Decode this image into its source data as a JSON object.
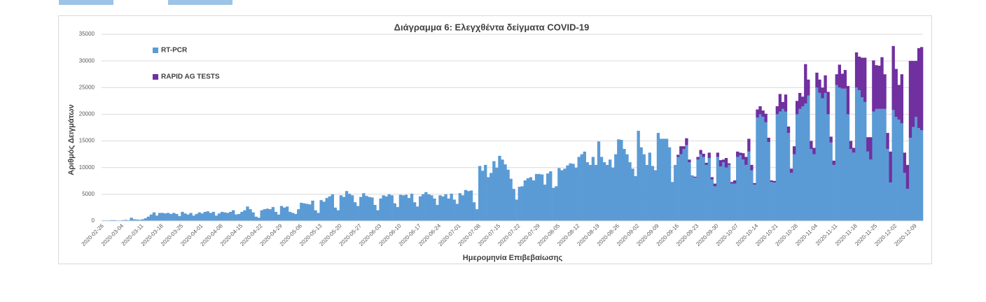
{
  "chart_data": {
    "type": "bar",
    "stacked": true,
    "title": "Διάγραμμα 6: Ελεγχθέντα δείγματα COVID-19",
    "x_label": "Ημερομηνία Επιβεβαίωσης",
    "y_label": "Αριθμός Δειγμάτων",
    "ylim": [
      0,
      35000
    ],
    "yticks": [
      0,
      5000,
      10000,
      15000,
      20000,
      25000,
      30000,
      35000
    ],
    "grid": true,
    "legend": "upper left",
    "categories": [
      "2020-02-26",
      null,
      null,
      null,
      null,
      null,
      null,
      "2020-03-04",
      null,
      null,
      null,
      null,
      null,
      null,
      "2020-03-11",
      null,
      null,
      null,
      null,
      null,
      null,
      "2020-03-18",
      null,
      null,
      null,
      null,
      null,
      null,
      "2020-03-25",
      null,
      null,
      null,
      null,
      null,
      null,
      "2020-04-01",
      null,
      null,
      null,
      null,
      null,
      null,
      "2020-04-08",
      null,
      null,
      null,
      null,
      null,
      null,
      "2020-04-15",
      null,
      null,
      null,
      null,
      null,
      null,
      "2020-04-22",
      null,
      null,
      null,
      null,
      null,
      null,
      "2020-04-29",
      null,
      null,
      null,
      null,
      null,
      null,
      "2020-05-06",
      null,
      null,
      null,
      null,
      null,
      null,
      "2020-05-13",
      null,
      null,
      null,
      null,
      null,
      null,
      "2020-05-20",
      null,
      null,
      null,
      null,
      null,
      null,
      "2020-05-27",
      null,
      null,
      null,
      null,
      null,
      null,
      "2020-06-03",
      null,
      null,
      null,
      null,
      null,
      null,
      "2020-06-10",
      null,
      null,
      null,
      null,
      null,
      null,
      "2020-06-17",
      null,
      null,
      null,
      null,
      null,
      null,
      "2020-06-24",
      null,
      null,
      null,
      null,
      null,
      null,
      "2020-07-01",
      null,
      null,
      null,
      null,
      null,
      null,
      "2020-07-08",
      null,
      null,
      null,
      null,
      null,
      null,
      "2020-07-15",
      null,
      null,
      null,
      null,
      null,
      null,
      "2020-07-22",
      null,
      null,
      null,
      null,
      null,
      null,
      "2020-07-29",
      null,
      null,
      null,
      null,
      null,
      null,
      "2020-08-05",
      null,
      null,
      null,
      null,
      null,
      null,
      "2020-08-12",
      null,
      null,
      null,
      null,
      null,
      null,
      "2020-08-19",
      null,
      null,
      null,
      null,
      null,
      null,
      "2020-08-26",
      null,
      null,
      null,
      null,
      null,
      null,
      "2020-09-02",
      null,
      null,
      null,
      null,
      null,
      null,
      "2020-09-09",
      null,
      null,
      null,
      null,
      null,
      null,
      "2020-09-16",
      null,
      null,
      null,
      null,
      null,
      null,
      "2020-09-23",
      null,
      null,
      null,
      null,
      null,
      null,
      "2020-09-30",
      null,
      null,
      null,
      null,
      null,
      null,
      "2020-10-07",
      null,
      null,
      null,
      null,
      null,
      null,
      "2020-10-14",
      null,
      null,
      null,
      null,
      null,
      null,
      "2020-10-21",
      null,
      null,
      null,
      null,
      null,
      null,
      "2020-10-28",
      null,
      null,
      null,
      null,
      null,
      null,
      "2020-11-04",
      null,
      null,
      null,
      null,
      null,
      null,
      "2020-11-11",
      null,
      null,
      null,
      null,
      null,
      null,
      "2020-11-18",
      null,
      null,
      null,
      null,
      null,
      null,
      "2020-11-25",
      null,
      null,
      null,
      null,
      null,
      null,
      "2020-12-02",
      null,
      null,
      null,
      null,
      null,
      null,
      "2020-12-09",
      null,
      null
    ],
    "series": [
      {
        "name": "RT-PCR",
        "color": "#5b9bd5",
        "values": [
          100,
          100,
          100,
          150,
          150,
          100,
          100,
          150,
          200,
          150,
          600,
          300,
          250,
          200,
          300,
          500,
          800,
          1200,
          1600,
          1000,
          1500,
          1500,
          1400,
          1500,
          1300,
          1500,
          1300,
          900,
          1700,
          1400,
          1200,
          1500,
          1000,
          1300,
          1600,
          1400,
          1700,
          1800,
          1500,
          1700,
          1000,
          1400,
          1700,
          1600,
          1500,
          1700,
          2000,
          1200,
          1300,
          1700,
          2000,
          2700,
          2200,
          1600,
          800,
          600,
          2000,
          2200,
          2300,
          2200,
          2600,
          1700,
          1200,
          2800,
          2500,
          2700,
          1700,
          1500,
          1300,
          2200,
          3400,
          3300,
          3200,
          3100,
          3800,
          2000,
          1500,
          3900,
          3600,
          4300,
          4600,
          5000,
          2500,
          2000,
          4800,
          4500,
          5600,
          5100,
          4800,
          3500,
          2800,
          4500,
          5200,
          4700,
          4500,
          4400,
          3000,
          2000,
          4200,
          4800,
          4600,
          5000,
          4800,
          3300,
          2600,
          4900,
          4800,
          4900,
          4300,
          5100,
          3500,
          2700,
          4600,
          5000,
          5400,
          5000,
          4800,
          4200,
          3000,
          4800,
          4600,
          5000,
          4200,
          5100,
          4000,
          3200,
          5200,
          4800,
          5800,
          5600,
          5700,
          3500,
          2200,
          10300,
          9400,
          10500,
          8200,
          9000,
          11200,
          10000,
          12200,
          11500,
          10600,
          9600,
          7900,
          6000,
          4000,
          6400,
          6500,
          7600,
          8000,
          8200,
          7600,
          8800,
          8800,
          8700,
          6800,
          8900,
          9300,
          6200,
          6500,
          9900,
          9500,
          9800,
          10400,
          10800,
          10700,
          10000,
          12000,
          12500,
          13000,
          11000,
          10500,
          12000,
          10500,
          14900,
          12000,
          11000,
          10500,
          11500,
          10000,
          12500,
          15300,
          15200,
          13500,
          12500,
          11000,
          9800,
          8400,
          16900,
          13800,
          12500,
          10500,
          12800,
          10300,
          9500,
          16500,
          15400,
          15400,
          15400,
          13800,
          7300,
          10500,
          12000,
          12500,
          13500,
          14200,
          11000,
          8400,
          8100,
          11500,
          12500,
          12000,
          10500,
          11800,
          7800,
          6500,
          12000,
          10200,
          11000,
          10000,
          10500,
          7000,
          7000,
          12000,
          12300,
          11500,
          10500,
          13000,
          9500,
          6800,
          19400,
          20000,
          19500,
          18500,
          14800,
          7300,
          7200,
          20000,
          20500,
          21000,
          20500,
          16500,
          9000,
          12500,
          20000,
          21000,
          21500,
          22000,
          23500,
          13500,
          12500,
          25000,
          24000,
          23000,
          24000,
          20000,
          14700,
          10500,
          25500,
          25000,
          24800,
          24800,
          20000,
          13500,
          12800,
          25000,
          24500,
          23200,
          22300,
          13000,
          11500,
          20500,
          21000,
          21000,
          21000,
          21000,
          13500,
          7200,
          20800,
          19500,
          19000,
          18300,
          9000,
          6000,
          15600,
          17600,
          19500,
          17400,
          17000
        ]
      },
      {
        "name": "RAPID AG TESTS",
        "color": "#7030a0",
        "values": [
          null,
          null,
          null,
          null,
          null,
          null,
          null,
          null,
          null,
          null,
          null,
          null,
          null,
          null,
          null,
          null,
          null,
          null,
          null,
          null,
          null,
          null,
          null,
          null,
          null,
          null,
          null,
          null,
          null,
          null,
          null,
          null,
          null,
          null,
          null,
          null,
          null,
          null,
          null,
          null,
          null,
          null,
          null,
          null,
          null,
          null,
          null,
          null,
          null,
          null,
          null,
          null,
          null,
          null,
          null,
          null,
          null,
          null,
          null,
          null,
          null,
          null,
          null,
          null,
          null,
          null,
          null,
          null,
          null,
          null,
          null,
          null,
          null,
          null,
          null,
          null,
          null,
          null,
          null,
          null,
          null,
          null,
          null,
          null,
          null,
          null,
          null,
          null,
          null,
          null,
          null,
          null,
          null,
          null,
          null,
          null,
          null,
          null,
          null,
          null,
          null,
          null,
          null,
          null,
          null,
          null,
          null,
          null,
          null,
          null,
          null,
          null,
          null,
          null,
          null,
          null,
          null,
          null,
          null,
          null,
          null,
          null,
          null,
          null,
          null,
          null,
          null,
          null,
          null,
          null,
          null,
          null,
          null,
          null,
          null,
          null,
          null,
          null,
          null,
          null,
          null,
          null,
          null,
          null,
          null,
          null,
          null,
          null,
          null,
          null,
          null,
          null,
          null,
          null,
          null,
          null,
          null,
          null,
          null,
          null,
          null,
          null,
          null,
          null,
          null,
          null,
          null,
          null,
          null,
          null,
          null,
          null,
          null,
          null,
          null,
          null,
          null,
          null,
          null,
          null,
          null,
          null,
          null,
          null,
          null,
          null,
          null,
          null,
          null,
          null,
          null,
          null,
          null,
          null,
          null,
          null,
          null,
          null,
          null,
          null,
          null,
          null,
          null,
          400,
          1500,
          500,
          1300,
          500,
          100,
          200,
          500,
          800,
          600,
          400,
          1000,
          400,
          500,
          800,
          1200,
          500,
          1800,
          300,
          300,
          600,
          1000,
          500,
          1200,
          1500,
          2400,
          1000,
          300,
          1500,
          1500,
          1200,
          1600,
          800,
          300,
          300,
          1500,
          3300,
          1300,
          3200,
          1200,
          800,
          1500,
          2500,
          3000,
          1800,
          7400,
          3000,
          1500,
          1200,
          2800,
          2500,
          2000,
          3300,
          4200,
          1100,
          800,
          2000,
          4300,
          2800,
          3500,
          5300,
          1500,
          900,
          6600,
          6300,
          7400,
          8300,
          2700,
          4200,
          9600,
          8200,
          8100,
          9700,
          6500,
          3000,
          5800,
          12000,
          9000,
          6500,
          9200,
          3800,
          4500,
          14400,
          12400,
          10500,
          15000,
          15600
        ]
      }
    ]
  }
}
